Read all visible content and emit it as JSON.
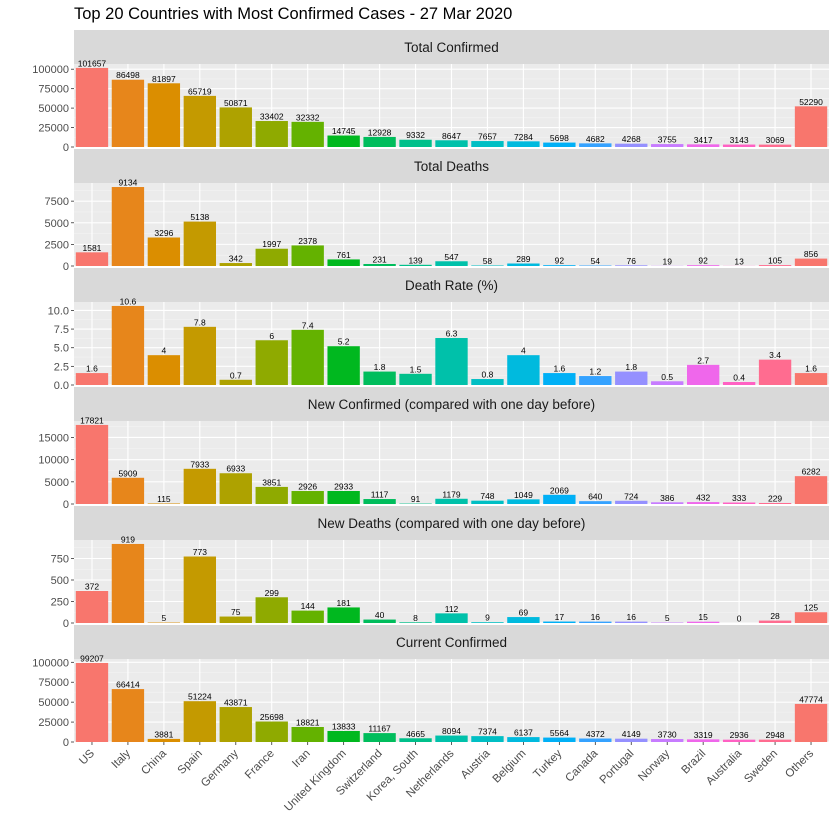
{
  "title": "Top 20 Countries with Most Confirmed Cases - 27 Mar 2020",
  "colors": {
    "panel_background": "#ebebeb",
    "strip_background": "#d9d9d9",
    "grid_major": "#ffffff",
    "grid_minor": "#f4f4f4",
    "bars": [
      "#F8766D",
      "#E7861B",
      "#DB8E00",
      "#C49A00",
      "#AEA200",
      "#8FAA00",
      "#64B200",
      "#00B81F",
      "#00BD5C",
      "#00C08B",
      "#00C1AA",
      "#00BFC4",
      "#00BADE",
      "#00B0F6",
      "#35A2FF",
      "#9590FF",
      "#C77CFF",
      "#EF67EB",
      "#FF61C3",
      "#FF6C90"
    ]
  },
  "chart_data": [
    {
      "type": "bar",
      "title": "Total Confirmed",
      "categories": [
        "US",
        "Italy",
        "China",
        "Spain",
        "Germany",
        "France",
        "Iran",
        "United Kingdom",
        "Switzerland",
        "Korea, South",
        "Netherlands",
        "Austria",
        "Belgium",
        "Turkey",
        "Canada",
        "Portugal",
        "Norway",
        "Brazil",
        "Australia",
        "Sweden",
        "Others"
      ],
      "values": [
        101657,
        86498,
        81897,
        65719,
        50871,
        33402,
        32332,
        14745,
        12928,
        9332,
        8647,
        7657,
        7284,
        5698,
        4682,
        4268,
        3755,
        3417,
        3143,
        3069,
        52290
      ],
      "value_labels": [
        "101657",
        "86498",
        "81897",
        "65719",
        "50871",
        "33402",
        "32332",
        "14745",
        "12928",
        "9332",
        "8647",
        "7657",
        "7284",
        "5698",
        "4682",
        "4268",
        "3755",
        "3417",
        "3143",
        "3069",
        "52290"
      ],
      "y_ticks": [
        0,
        25000,
        50000,
        75000,
        100000
      ],
      "ylim": [
        0,
        106700
      ]
    },
    {
      "type": "bar",
      "title": "Total Deaths",
      "categories": [
        "US",
        "Italy",
        "China",
        "Spain",
        "Germany",
        "France",
        "Iran",
        "United Kingdom",
        "Switzerland",
        "Korea, South",
        "Netherlands",
        "Austria",
        "Belgium",
        "Turkey",
        "Canada",
        "Portugal",
        "Norway",
        "Brazil",
        "Australia",
        "Sweden",
        "Others"
      ],
      "values": [
        1581,
        9134,
        3296,
        5138,
        342,
        1997,
        2378,
        761,
        231,
        139,
        547,
        58,
        289,
        92,
        54,
        76,
        19,
        92,
        13,
        105,
        856
      ],
      "value_labels": [
        "1581",
        "9134",
        "3296",
        "5138",
        "342",
        "1997",
        "2378",
        "761",
        "231",
        "139",
        "547",
        "58",
        "289",
        "92",
        "54",
        "76",
        "19",
        "92",
        "13",
        "105",
        "856"
      ],
      "y_ticks": [
        0,
        2500,
        5000,
        7500
      ],
      "ylim": [
        0,
        9600
      ]
    },
    {
      "type": "bar",
      "title": "Death Rate (%)",
      "categories": [
        "US",
        "Italy",
        "China",
        "Spain",
        "Germany",
        "France",
        "Iran",
        "United Kingdom",
        "Switzerland",
        "Korea, South",
        "Netherlands",
        "Austria",
        "Belgium",
        "Turkey",
        "Canada",
        "Portugal",
        "Norway",
        "Brazil",
        "Australia",
        "Sweden",
        "Others"
      ],
      "values": [
        1.6,
        10.6,
        4,
        7.8,
        0.7,
        6,
        7.4,
        5.2,
        1.8,
        1.5,
        6.3,
        0.8,
        4,
        1.6,
        1.2,
        1.8,
        0.5,
        2.7,
        0.4,
        3.4,
        1.6
      ],
      "value_labels": [
        "1.6",
        "10.6",
        "4",
        "7.8",
        "0.7",
        "6",
        "7.4",
        "5.2",
        "1.8",
        "1.5",
        "6.3",
        "0.8",
        "4",
        "1.6",
        "1.2",
        "1.8",
        "0.5",
        "2.7",
        "0.4",
        "3.4",
        "1.6"
      ],
      "y_ticks": [
        0,
        2.5,
        5,
        7.5,
        10
      ],
      "y_tick_labels": [
        "0.0",
        "2.5",
        "5.0",
        "7.5",
        "10.0"
      ],
      "ylim": [
        0,
        11.13
      ]
    },
    {
      "type": "bar",
      "title": "New Confirmed (compared with one day before)",
      "categories": [
        "US",
        "Italy",
        "China",
        "Spain",
        "Germany",
        "France",
        "Iran",
        "United Kingdom",
        "Switzerland",
        "Korea, South",
        "Netherlands",
        "Austria",
        "Belgium",
        "Turkey",
        "Canada",
        "Portugal",
        "Norway",
        "Brazil",
        "Australia",
        "Sweden",
        "Others"
      ],
      "values": [
        17821,
        5909,
        115,
        7933,
        6933,
        3851,
        2926,
        2933,
        1117,
        91,
        1179,
        748,
        1049,
        2069,
        640,
        724,
        386,
        432,
        333,
        229,
        6282
      ],
      "value_labels": [
        "17821",
        "5909",
        "115",
        "7933",
        "6933",
        "3851",
        "2926",
        "2933",
        "1117",
        "91",
        "1179",
        "748",
        "1049",
        "2069",
        "640",
        "724",
        "386",
        "432",
        "333",
        "229",
        "6282"
      ],
      "y_ticks": [
        0,
        5000,
        10000,
        15000
      ],
      "ylim": [
        0,
        18710
      ]
    },
    {
      "type": "bar",
      "title": "New Deaths (compared with one day before)",
      "categories": [
        "US",
        "Italy",
        "China",
        "Spain",
        "Germany",
        "France",
        "Iran",
        "United Kingdom",
        "Switzerland",
        "Korea, South",
        "Netherlands",
        "Austria",
        "Belgium",
        "Turkey",
        "Canada",
        "Portugal",
        "Norway",
        "Brazil",
        "Australia",
        "Sweden",
        "Others"
      ],
      "values": [
        372,
        919,
        5,
        773,
        75,
        299,
        144,
        181,
        40,
        8,
        112,
        9,
        69,
        17,
        16,
        16,
        5,
        15,
        0,
        28,
        125
      ],
      "value_labels": [
        "372",
        "919",
        "5",
        "773",
        "75",
        "299",
        "144",
        "181",
        "40",
        "8",
        "112",
        "9",
        "69",
        "17",
        "16",
        "16",
        "5",
        "15",
        "0",
        "28",
        "125"
      ],
      "y_ticks": [
        0,
        250,
        500,
        750
      ],
      "ylim": [
        0,
        965
      ]
    },
    {
      "type": "bar",
      "title": "Current Confirmed",
      "categories": [
        "US",
        "Italy",
        "China",
        "Spain",
        "Germany",
        "France",
        "Iran",
        "United Kingdom",
        "Switzerland",
        "Korea, South",
        "Netherlands",
        "Austria",
        "Belgium",
        "Turkey",
        "Canada",
        "Portugal",
        "Norway",
        "Brazil",
        "Australia",
        "Sweden",
        "Others"
      ],
      "values": [
        99207,
        66414,
        3881,
        51224,
        43871,
        25698,
        18821,
        13833,
        11167,
        4665,
        8094,
        7374,
        6137,
        5564,
        4372,
        4149,
        3730,
        3319,
        2936,
        2948,
        47774
      ],
      "value_labels": [
        "99207",
        "66414",
        "3881",
        "51224",
        "43871",
        "25698",
        "18821",
        "13833",
        "11167",
        "4665",
        "8094",
        "7374",
        "6137",
        "5564",
        "4372",
        "4149",
        "3730",
        "3319",
        "2936",
        "2948",
        "47774"
      ],
      "y_ticks": [
        0,
        25000,
        50000,
        75000,
        100000
      ],
      "ylim": [
        0,
        104170
      ]
    }
  ]
}
